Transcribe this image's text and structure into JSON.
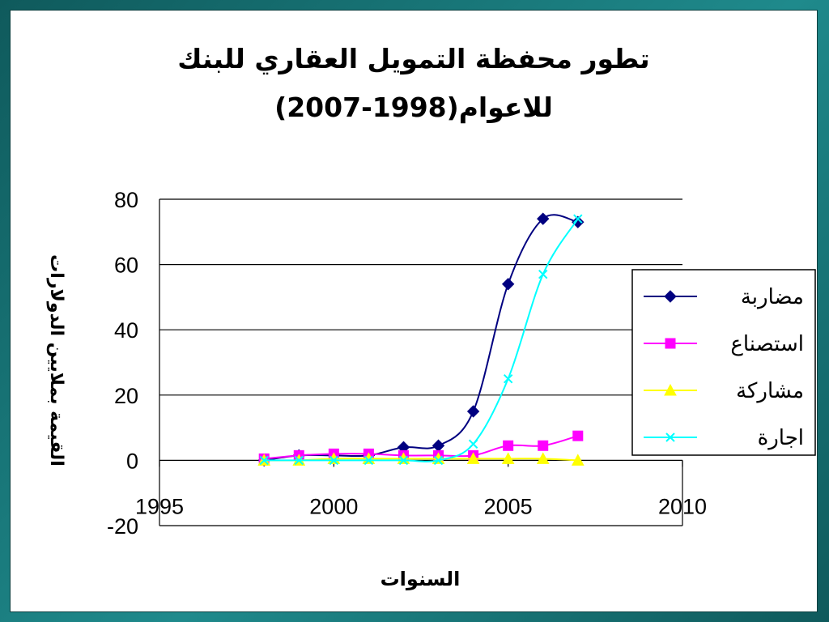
{
  "chart_data": {
    "type": "line",
    "title_line1": "تطور محفظة التمويل العقاري للبنك",
    "title_line2": "للاعوام(1998-2007)",
    "xlabel": "السنوات",
    "ylabel": "القيمة بملايين الدولارات",
    "xlim": [
      1995,
      2010
    ],
    "ylim": [
      -20,
      80
    ],
    "xticks": [
      1995,
      2000,
      2005,
      2010
    ],
    "yticks": [
      -20,
      0,
      20,
      40,
      60,
      80
    ],
    "grid": "horizontal",
    "legend": "right",
    "x": [
      1998,
      1999,
      2000,
      2001,
      2002,
      2003,
      2004,
      2005,
      2006,
      2007
    ],
    "series": [
      {
        "name": "مضاربة",
        "color": "#000080",
        "marker": "diamond",
        "values": [
          0,
          1.5,
          1.5,
          1.5,
          4,
          4.5,
          15,
          54,
          74,
          73
        ]
      },
      {
        "name": "استصناع",
        "color": "#ff00ff",
        "marker": "square",
        "values": [
          0.5,
          1.5,
          2,
          2,
          1.5,
          1.5,
          1.5,
          4.5,
          4.5,
          7.5
        ]
      },
      {
        "name": "مشاركة",
        "color": "#ffff00",
        "marker": "triangle",
        "values": [
          0,
          0,
          0.5,
          0.5,
          0.5,
          0.5,
          0.5,
          0.5,
          0.5,
          0
        ]
      },
      {
        "name": "اجارة",
        "color": "#00ffff",
        "marker": "x",
        "values": [
          0,
          0,
          0,
          0,
          0,
          0,
          5,
          25,
          57,
          74
        ]
      }
    ]
  }
}
